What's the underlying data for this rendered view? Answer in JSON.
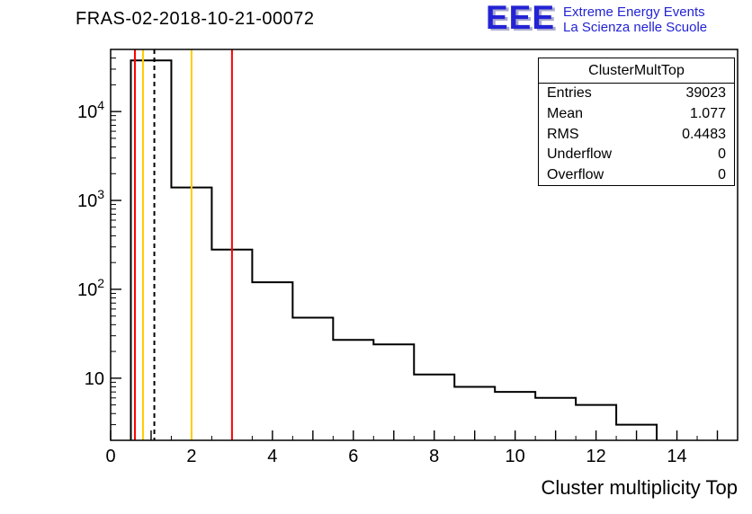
{
  "header": {
    "title": "FRAS-02-2018-10-21-00072"
  },
  "logo": {
    "acronym": "EEE",
    "line1": "Extreme Energy Events",
    "line2": "La Scienza nelle Scuole",
    "color": "#2323d4"
  },
  "stats": {
    "title": "ClusterMultTop",
    "rows": [
      {
        "label": "Entries",
        "value": "39023"
      },
      {
        "label": "Mean",
        "value": "1.077"
      },
      {
        "label": "RMS",
        "value": "0.4483"
      },
      {
        "label": "Underflow",
        "value": "0"
      },
      {
        "label": "Overflow",
        "value": "0"
      }
    ]
  },
  "chart_data": {
    "type": "bar",
    "subtype": "step-histogram",
    "title": "FRAS-02-2018-10-21-00072",
    "xlabel": "Cluster multiplicity Top",
    "ylabel": "",
    "yscale": "log",
    "xlim": [
      0,
      15.5
    ],
    "ylim": [
      2,
      50000
    ],
    "grid": false,
    "legend": "none",
    "xtick_labels": [
      0,
      2,
      4,
      6,
      8,
      10,
      12,
      14
    ],
    "ytick_decades": [
      {
        "value": 10,
        "base": "10",
        "exp": ""
      },
      {
        "value": 100,
        "base": "10",
        "exp": "2"
      },
      {
        "value": 1000,
        "base": "10",
        "exp": "3"
      },
      {
        "value": 10000,
        "base": "10",
        "exp": "4"
      }
    ],
    "bin_width": 1,
    "bin_centers": [
      1,
      2,
      3,
      4,
      5,
      6,
      7,
      8,
      9,
      10,
      11,
      12,
      13
    ],
    "counts": [
      37600,
      1400,
      280,
      120,
      48,
      27,
      24,
      11,
      8,
      7,
      6,
      5,
      3
    ],
    "line_color": "#000000",
    "marker_lines": [
      {
        "x": 0.6,
        "color": "#ff0000",
        "dash": false
      },
      {
        "x": 0.8,
        "color": "#ffcc00",
        "dash": false
      },
      {
        "x": 1.08,
        "color": "#000000",
        "dash": true
      },
      {
        "x": 2.0,
        "color": "#ffcc00",
        "dash": false
      },
      {
        "x": 3.0,
        "color": "#ff0000",
        "dash": false
      }
    ]
  }
}
